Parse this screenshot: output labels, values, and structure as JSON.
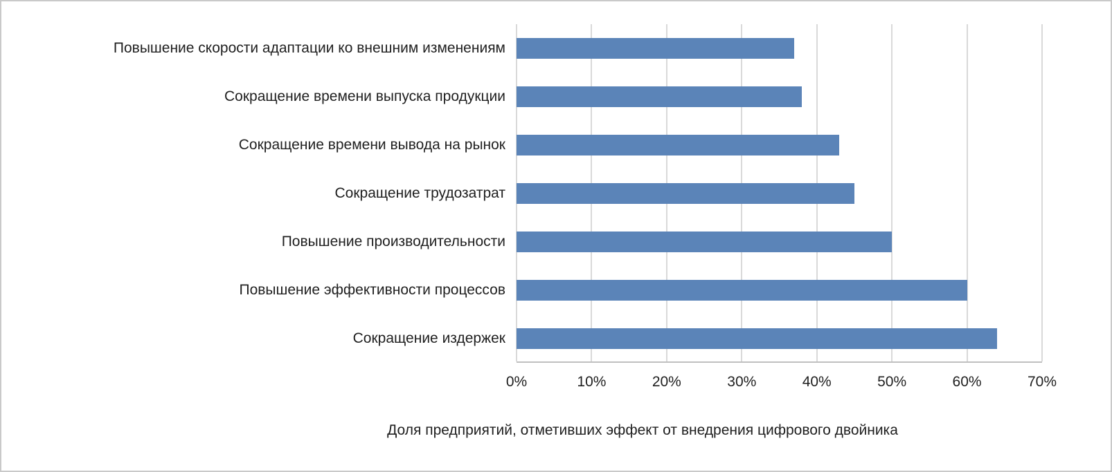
{
  "chart_data": {
    "type": "bar",
    "orientation": "horizontal",
    "title": "",
    "xlabel": "Доля предприятий, отметивших эффект от внедрения цифрового двойника",
    "ylabel": "",
    "categories": [
      "Повышение скорости адаптации ко внешним изменениям",
      "Сокращение времени выпуска продукции",
      "Сокращение времени вывода на рынок",
      "Сокращение трудозатрат",
      "Повышение производительности",
      "Повышение эффективности процессов",
      "Сокращение издержек"
    ],
    "values": [
      37,
      38,
      43,
      45,
      50,
      60,
      64
    ],
    "value_unit": "%",
    "x_tick_labels": [
      "0%",
      "10%",
      "20%",
      "30%",
      "40%",
      "50%",
      "60%",
      "70%"
    ],
    "xlim": [
      0,
      70
    ],
    "grid": "vertical-gridlines",
    "legend": "none",
    "colors": {
      "bar": "#5b84b8",
      "gridline": "#d9d9d9",
      "axis_line": "#bfbfbf",
      "text": "#1f1f1f",
      "border": "#c9c9c9",
      "background": "#ffffff"
    }
  }
}
